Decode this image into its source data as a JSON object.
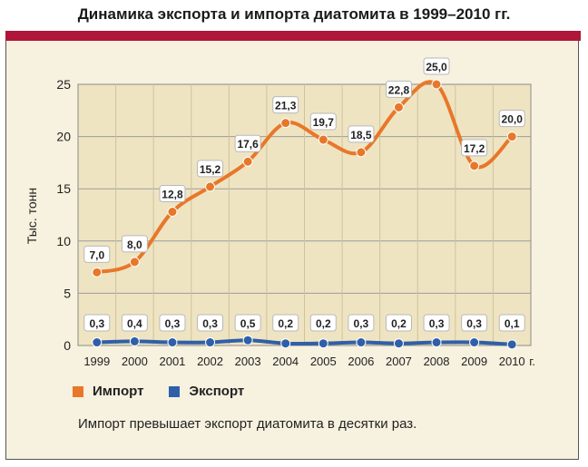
{
  "chart_data": {
    "type": "line",
    "title": "Динамика экспорта и импорта диатомита в 1999–2010 гг.",
    "ylabel": "Тыс. тонн",
    "xlabel": "",
    "x_unit": "г.",
    "ylim": [
      0,
      25
    ],
    "yticks": [
      0,
      5,
      10,
      15,
      20,
      25
    ],
    "categories": [
      "1999",
      "2000",
      "2001",
      "2002",
      "2003",
      "2004",
      "2005",
      "2006",
      "2007",
      "2008",
      "2009",
      "2010"
    ],
    "series": [
      {
        "name": "Импорт",
        "color": "#e8772a",
        "values": [
          7.0,
          8.0,
          12.8,
          15.2,
          17.6,
          21.3,
          19.7,
          18.5,
          22.8,
          25.0,
          17.2,
          20.0
        ],
        "labels": [
          "7,0",
          "8,0",
          "12,8",
          "15,2",
          "17,6",
          "21,3",
          "19,7",
          "18,5",
          "22,8",
          "25,0",
          "17,2",
          "20,0"
        ]
      },
      {
        "name": "Экспорт",
        "color": "#2f5fa8",
        "values": [
          0.3,
          0.4,
          0.3,
          0.3,
          0.5,
          0.2,
          0.2,
          0.3,
          0.2,
          0.3,
          0.3,
          0.1
        ],
        "labels": [
          "0,3",
          "0,4",
          "0,3",
          "0,3",
          "0,5",
          "0,2",
          "0,2",
          "0,3",
          "0,2",
          "0,3",
          "0,3",
          "0,1"
        ]
      }
    ],
    "legend_position": "bottom-left",
    "grid": true
  },
  "note": "Импорт превышает экспорт диатомита в десятки раз.",
  "colors": {
    "band": "#b0163a",
    "panel": "#f7f1df",
    "plot": "#efe4c2"
  }
}
